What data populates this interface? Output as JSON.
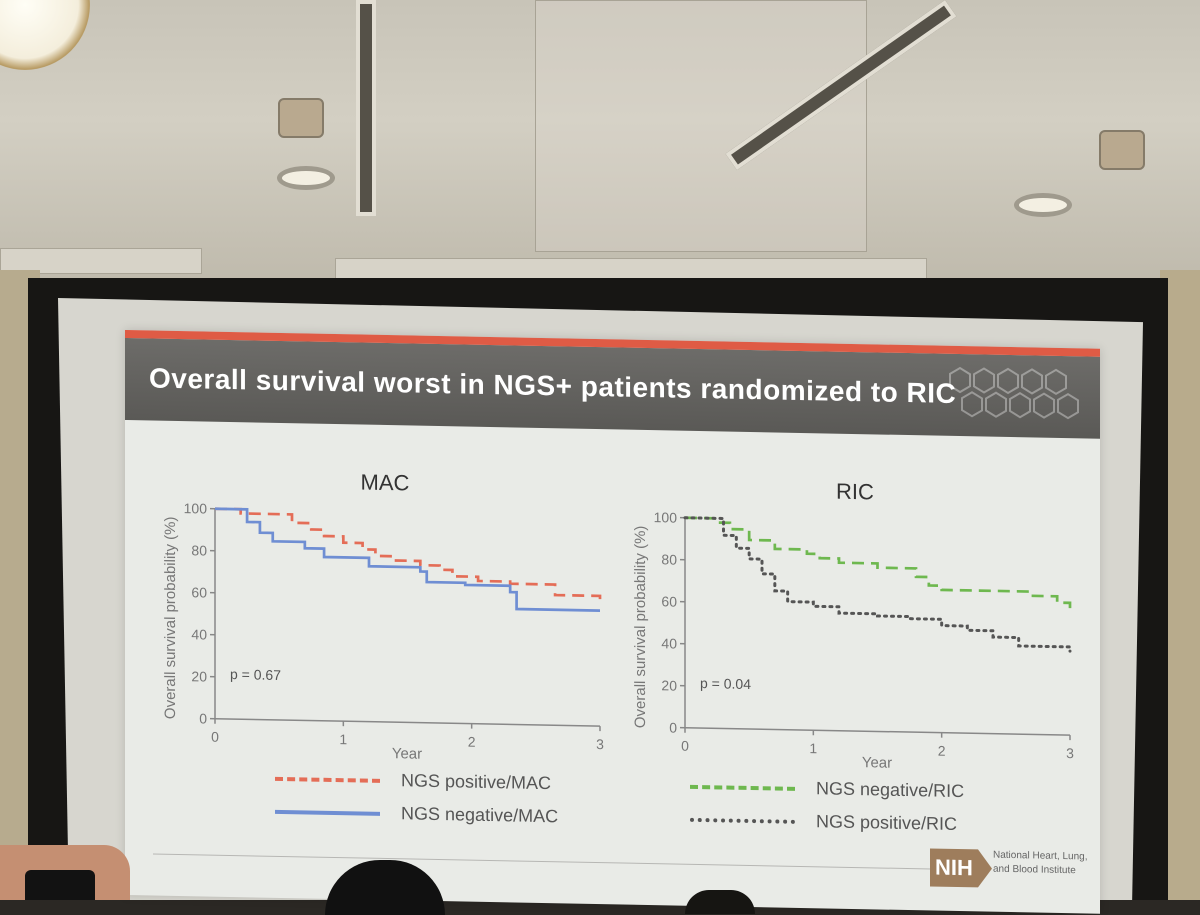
{
  "slide": {
    "title": "Overall survival worst in NGS+ patients randomized to RIC",
    "footer": {
      "logo": "NIH",
      "institute_lines": [
        "National Heart, Lung,",
        "and Blood Institute"
      ]
    }
  },
  "chart_data": [
    {
      "type": "line",
      "title": "MAC",
      "xlabel": "Year",
      "ylabel": "Overall survival probability (%)",
      "xlim": [
        0,
        3
      ],
      "ylim": [
        0,
        100
      ],
      "x_ticks": [
        "0",
        "1",
        "2",
        "3"
      ],
      "y_ticks": [
        "0",
        "20",
        "40",
        "60",
        "80",
        "100"
      ],
      "annotation": "p = 0.67",
      "series": [
        {
          "name": "NGS positive/MAC",
          "color": "#e46d57",
          "style": "dashed",
          "x": [
            0,
            0.2,
            0.55,
            0.6,
            0.75,
            0.85,
            1.0,
            1.15,
            1.25,
            1.4,
            1.6,
            1.75,
            1.85,
            2.05,
            2.3,
            2.65,
            3.0
          ],
          "y": [
            100,
            98,
            98,
            94,
            91,
            88,
            85,
            82,
            79,
            77,
            75,
            73,
            70,
            68,
            67,
            62,
            58
          ]
        },
        {
          "name": "NGS negative/MAC",
          "color": "#6f8ed3",
          "style": "solid",
          "x": [
            0,
            0.25,
            0.35,
            0.45,
            0.7,
            0.85,
            1.2,
            1.6,
            1.65,
            1.95,
            2.3,
            2.35,
            3.0
          ],
          "y": [
            100,
            94,
            89,
            85,
            82,
            78,
            74,
            72,
            67,
            66,
            63,
            55,
            55
          ]
        }
      ]
    },
    {
      "type": "line",
      "title": "RIC",
      "xlabel": "Year",
      "ylabel": "Overall survival probability (%)",
      "xlim": [
        0,
        3
      ],
      "ylim": [
        0,
        100
      ],
      "x_ticks": [
        "0",
        "1",
        "2",
        "3"
      ],
      "y_ticks": [
        "0",
        "20",
        "40",
        "60",
        "80",
        "100"
      ],
      "annotation": "p = 0.04",
      "series": [
        {
          "name": "NGS negative/RIC",
          "color": "#6eb84f",
          "style": "dashed",
          "x": [
            0,
            0.25,
            0.35,
            0.5,
            0.7,
            0.95,
            1.05,
            1.2,
            1.5,
            1.8,
            1.9,
            2.0,
            2.7,
            2.9,
            3.0
          ],
          "y": [
            100,
            98,
            95,
            90,
            86,
            84,
            82,
            80,
            78,
            74,
            70,
            68,
            66,
            63,
            60
          ]
        },
        {
          "name": "NGS positive/RIC",
          "color": "#555555",
          "style": "dotted",
          "x": [
            0,
            0.3,
            0.4,
            0.5,
            0.6,
            0.7,
            0.8,
            1.0,
            1.2,
            1.5,
            1.75,
            2.0,
            2.2,
            2.4,
            2.6,
            3.0
          ],
          "y": [
            100,
            92,
            86,
            81,
            74,
            66,
            61,
            59,
            56,
            55,
            54,
            51,
            49,
            46,
            42,
            40
          ]
        }
      ]
    }
  ]
}
